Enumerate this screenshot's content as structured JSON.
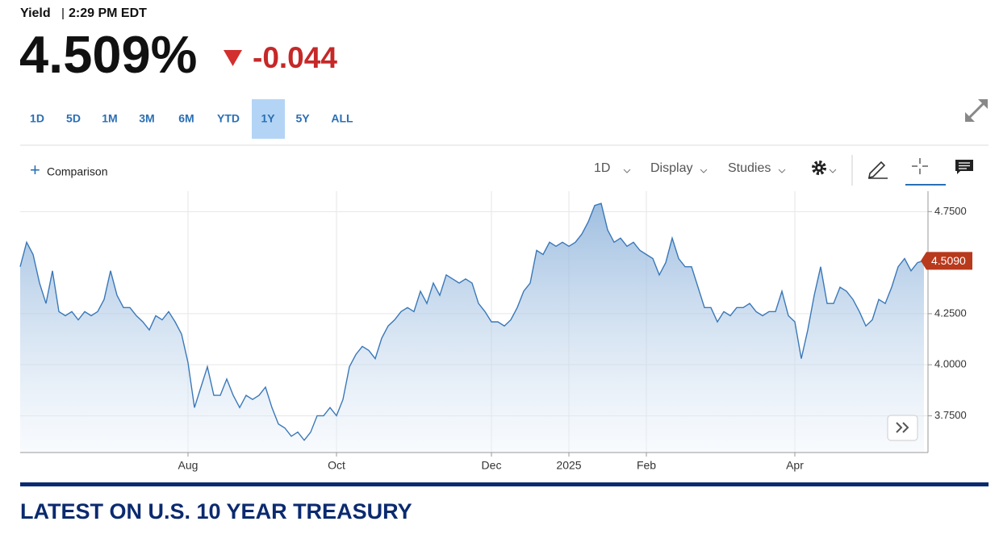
{
  "header": {
    "label": "Yield",
    "time": "2:29 PM EDT",
    "price": "4.509%",
    "change": "-0.044"
  },
  "ranges": [
    "1D",
    "5D",
    "1M",
    "3M",
    "6M",
    "YTD",
    "1Y",
    "5Y",
    "ALL"
  ],
  "active_range": "1Y",
  "toolbar": {
    "comparison": "Comparison",
    "interval": "1D",
    "display": "Display",
    "studies": "Studies"
  },
  "chart_data": {
    "type": "area",
    "categories": [
      null,
      null,
      null,
      null,
      null,
      null,
      null,
      null,
      null,
      null,
      null,
      null,
      null,
      null,
      null,
      null,
      null,
      null,
      null,
      null,
      null,
      null,
      null,
      null,
      null,
      null,
      "Aug",
      null,
      null,
      null,
      null,
      null,
      null,
      null,
      null,
      null,
      null,
      null,
      null,
      null,
      null,
      null,
      null,
      null,
      null,
      null,
      null,
      null,
      null,
      "Oct",
      null,
      null,
      null,
      null,
      null,
      null,
      null,
      null,
      null,
      null,
      null,
      null,
      null,
      null,
      null,
      null,
      null,
      null,
      null,
      null,
      null,
      null,
      null,
      "Dec",
      null,
      null,
      null,
      null,
      null,
      null,
      null,
      null,
      null,
      null,
      null,
      "2025",
      null,
      null,
      null,
      null,
      null,
      null,
      null,
      null,
      null,
      null,
      null,
      "Feb",
      null,
      null,
      null,
      null,
      null,
      null,
      null,
      null,
      null,
      null,
      null,
      null,
      null,
      null,
      null,
      null,
      null,
      null,
      null,
      null,
      null,
      null,
      "Apr",
      null,
      null,
      null,
      null,
      null,
      null,
      null,
      null,
      null,
      null,
      null,
      null,
      null,
      null,
      null,
      null,
      null,
      null,
      null,
      null
    ],
    "values": [
      4.48,
      4.6,
      4.54,
      4.4,
      4.3,
      4.46,
      4.26,
      4.24,
      4.26,
      4.22,
      4.26,
      4.24,
      4.26,
      4.32,
      4.46,
      4.34,
      4.28,
      4.28,
      4.24,
      4.21,
      4.17,
      4.24,
      4.22,
      4.26,
      4.21,
      4.15,
      4.01,
      3.79,
      3.89,
      3.99,
      3.85,
      3.85,
      3.93,
      3.85,
      3.79,
      3.85,
      3.83,
      3.85,
      3.89,
      3.79,
      3.71,
      3.69,
      3.65,
      3.67,
      3.63,
      3.67,
      3.75,
      3.75,
      3.79,
      3.75,
      3.83,
      3.99,
      4.05,
      4.09,
      4.07,
      4.03,
      4.13,
      4.19,
      4.22,
      4.26,
      4.28,
      4.26,
      4.36,
      4.3,
      4.4,
      4.34,
      4.44,
      4.42,
      4.4,
      4.42,
      4.4,
      4.3,
      4.26,
      4.21,
      4.21,
      4.19,
      4.22,
      4.28,
      4.36,
      4.4,
      4.56,
      4.54,
      4.6,
      4.58,
      4.6,
      4.58,
      4.6,
      4.64,
      4.7,
      4.78,
      4.79,
      4.66,
      4.6,
      4.62,
      4.58,
      4.6,
      4.56,
      4.54,
      4.52,
      4.44,
      4.5,
      4.62,
      4.52,
      4.48,
      4.48,
      4.38,
      4.28,
      4.28,
      4.21,
      4.26,
      4.24,
      4.28,
      4.28,
      4.3,
      4.26,
      4.24,
      4.26,
      4.26,
      4.36,
      4.24,
      4.21,
      4.03,
      4.17,
      4.34,
      4.48,
      4.3,
      4.3,
      4.38,
      4.36,
      4.32,
      4.26,
      4.19,
      4.22,
      4.32,
      4.3,
      4.38,
      4.48,
      4.52,
      4.46,
      4.5,
      4.51
    ],
    "color": "#3a78b8",
    "ylim": [
      3.57,
      4.85
    ],
    "yticks": [
      {
        "value": 3.75,
        "label": "3.7500"
      },
      {
        "value": 4.0,
        "label": "4.0000"
      },
      {
        "value": 4.25,
        "label": "4.2500"
      },
      {
        "value": 4.75,
        "label": "4.7500"
      }
    ],
    "grid": true,
    "last_value": {
      "value": 4.509,
      "label": "4.5090"
    }
  },
  "footer": {
    "heading": "LATEST ON U.S. 10 YEAR TREASURY"
  }
}
